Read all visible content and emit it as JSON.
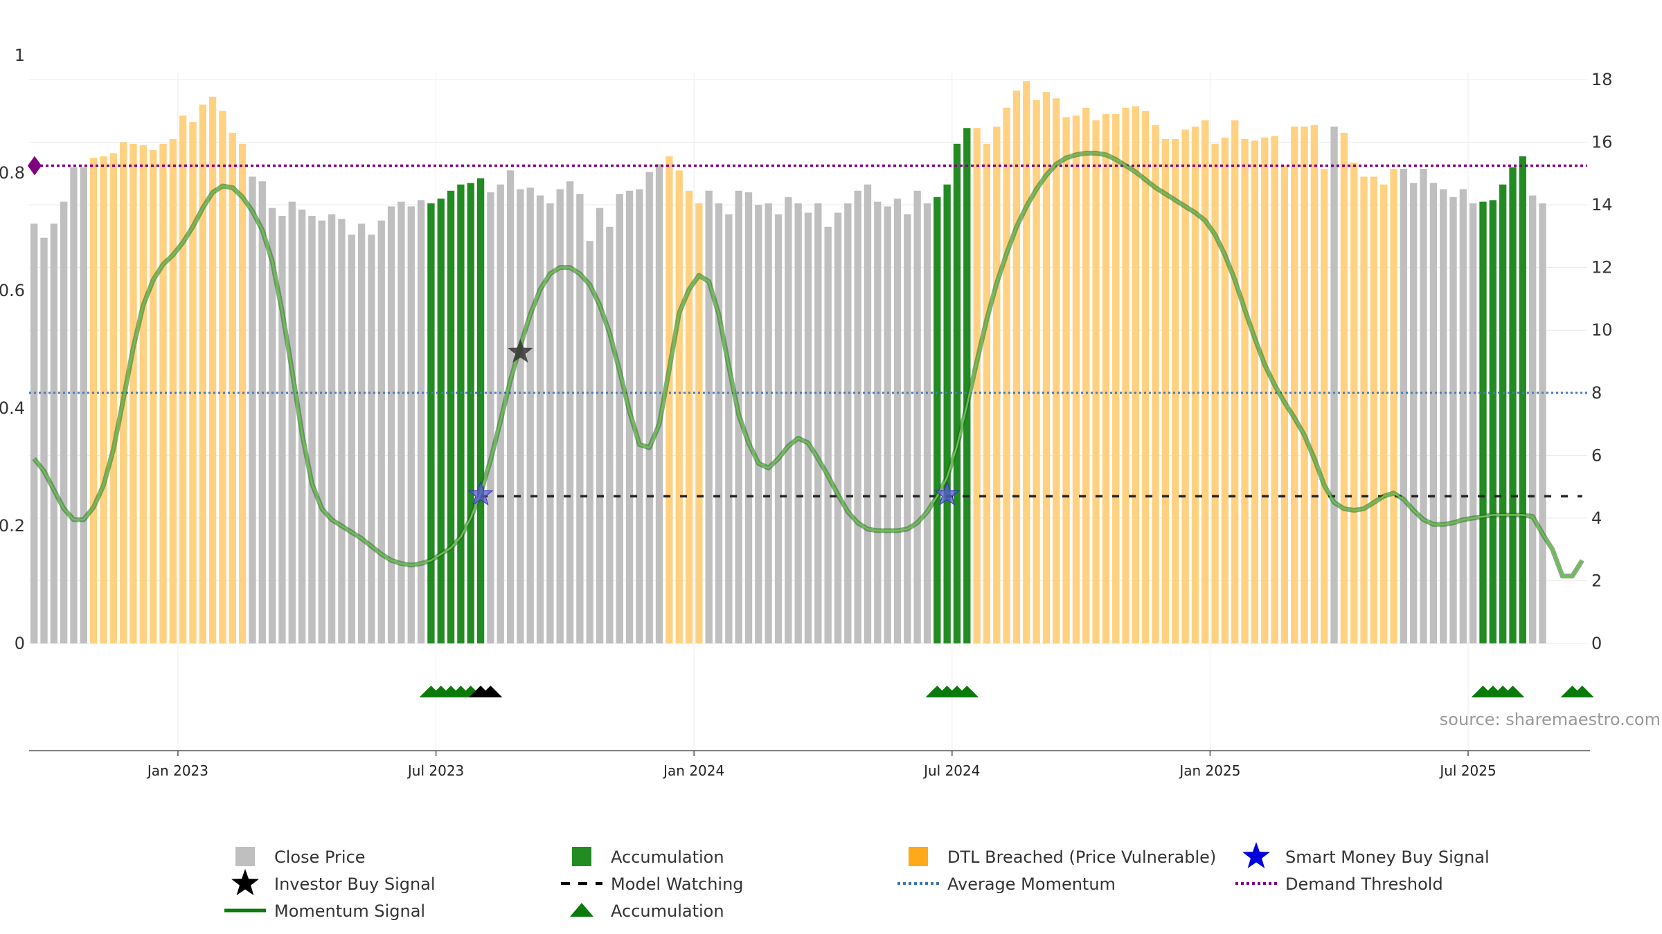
{
  "chart_data": {
    "type": "bar",
    "title": "",
    "xlabel": "",
    "ylabel": "",
    "source": "source: sharemaestro.com",
    "colors": {
      "close": "#bfbfbf",
      "accumulation": "#228b22",
      "dtl": "#ffd180",
      "momentum": "#2e8b2e",
      "average": "#4a7bb7",
      "demand": "#800080",
      "watching": "#222222",
      "smart_money": "#3333cc",
      "investor": "#333333",
      "triangle": "#0a7a0a"
    },
    "y_left": {
      "range": [
        0,
        1
      ],
      "ticks": [
        "0",
        "0.2",
        "0.4",
        "0.6",
        "0.8",
        "1"
      ]
    },
    "y_right": {
      "range": [
        0,
        18
      ],
      "ticks": [
        "0",
        "2",
        "4",
        "6",
        "8",
        "10",
        "12",
        "14",
        "16",
        "18"
      ]
    },
    "x_ticks": [
      "Jan 2023",
      "Jul 2023",
      "Jan 2024",
      "Jul 2024",
      "Jan 2025",
      "Jul 2025"
    ],
    "x_tick_index": [
      14.5,
      40.5,
      66.5,
      92.5,
      118.5,
      144.5
    ],
    "n_bars": 157,
    "bars_close": [
      13.4,
      12.95,
      13.4,
      14.1,
      15.2,
      15.2,
      15.5,
      15.55,
      15.65,
      16,
      15.95,
      15.9,
      15.75,
      15.95,
      16.1,
      16.85,
      16.65,
      17.2,
      17.45,
      17,
      16.3,
      15.95,
      14.9,
      14.75,
      13.9,
      13.65,
      14.1,
      13.85,
      13.65,
      13.5,
      13.7,
      13.55,
      13.05,
      13.4,
      13.05,
      13.5,
      13.95,
      14.1,
      13.95,
      14.15,
      14.05,
      14.2,
      14.45,
      14.65,
      14.7,
      14.85,
      14.4,
      14.65,
      15.1,
      14.5,
      14.55,
      14.3,
      14.05,
      14.5,
      14.75,
      14.35,
      12.85,
      13.9,
      13.3,
      14.35,
      14.45,
      14.5,
      15.05,
      15.3,
      15.55,
      15.1,
      14.45,
      14.05,
      14.45,
      14.05,
      13.7,
      14.45,
      14.4,
      14,
      14.05,
      13.7,
      14.25,
      14.05,
      13.75,
      14.05,
      13.3,
      13.75,
      14.05,
      14.45,
      14.65,
      14.1,
      13.95,
      14.2,
      13.7,
      14.45,
      14.05,
      14.25,
      14.65,
      15.95,
      16.45,
      16.45,
      15.95,
      16.5,
      17.1,
      17.65,
      17.95,
      17.35,
      17.6,
      17.4,
      16.8,
      16.85,
      17.1,
      16.7,
      16.9,
      16.9,
      17.1,
      17.15,
      17,
      16.55,
      16.1,
      16.1,
      16.4,
      16.5,
      16.7,
      15.95,
      16.15,
      16.7,
      16.1,
      16.05,
      16.15,
      16.2,
      15.25,
      16.5,
      16.5,
      16.55,
      15.15,
      16.5,
      16.3,
      15.35,
      14.9,
      14.9,
      14.65,
      15.15,
      15.15,
      14.7,
      15.15,
      14.7,
      14.5,
      14.25,
      14.5,
      14.05,
      14.1,
      14.15,
      14.65,
      15.2,
      15.55,
      14.3,
      14.05
    ],
    "bars_accumulation": [
      40,
      41,
      42,
      43,
      44,
      45,
      91,
      92,
      93,
      94,
      146,
      147,
      148,
      149,
      150,
      155,
      156
    ],
    "bars_dtl": [
      6,
      7,
      8,
      9,
      10,
      11,
      12,
      13,
      14,
      15,
      16,
      17,
      18,
      19,
      20,
      21,
      64,
      65,
      66,
      67,
      94,
      95,
      96,
      97,
      98,
      99,
      100,
      101,
      102,
      103,
      104,
      105,
      106,
      107,
      108,
      109,
      110,
      111,
      112,
      113,
      114,
      115,
      116,
      117,
      118,
      119,
      120,
      121,
      122,
      123,
      124,
      125,
      126,
      127,
      128,
      129,
      130,
      132,
      133,
      134,
      135,
      136,
      137,
      154
    ],
    "momentum": [
      [
        0,
        5.9
      ],
      [
        1,
        5.5
      ],
      [
        2,
        4.9
      ],
      [
        3,
        4.3
      ],
      [
        4,
        3.95
      ],
      [
        5,
        3.95
      ],
      [
        6,
        4.35
      ],
      [
        7,
        5.05
      ],
      [
        8,
        6.2
      ],
      [
        9,
        7.8
      ],
      [
        10,
        9.45
      ],
      [
        11,
        10.8
      ],
      [
        12,
        11.6
      ],
      [
        13,
        12.1
      ],
      [
        14,
        12.4
      ],
      [
        15,
        12.8
      ],
      [
        16,
        13.3
      ],
      [
        17,
        13.9
      ],
      [
        18,
        14.4
      ],
      [
        19,
        14.6
      ],
      [
        20,
        14.55
      ],
      [
        21,
        14.25
      ],
      [
        22,
        13.8
      ],
      [
        23,
        13.2
      ],
      [
        24,
        12.2
      ],
      [
        25,
        10.6
      ],
      [
        26,
        8.7
      ],
      [
        27,
        6.7
      ],
      [
        28,
        5.1
      ],
      [
        29,
        4.3
      ],
      [
        30,
        3.95
      ],
      [
        31,
        3.75
      ],
      [
        32,
        3.55
      ],
      [
        33,
        3.35
      ],
      [
        34,
        3.1
      ],
      [
        35,
        2.85
      ],
      [
        36,
        2.65
      ],
      [
        37,
        2.55
      ],
      [
        38,
        2.5
      ],
      [
        39,
        2.55
      ],
      [
        40,
        2.65
      ],
      [
        41,
        2.85
      ],
      [
        42,
        3.05
      ],
      [
        43,
        3.4
      ],
      [
        44,
        4
      ],
      [
        45,
        4.8
      ],
      [
        46,
        5.85
      ],
      [
        47,
        7.1
      ],
      [
        48,
        8.4
      ],
      [
        49,
        9.5
      ],
      [
        50,
        10.5
      ],
      [
        51,
        11.3
      ],
      [
        52,
        11.8
      ],
      [
        53,
        12
      ],
      [
        54,
        12
      ],
      [
        55,
        11.8
      ],
      [
        56,
        11.45
      ],
      [
        57,
        10.8
      ],
      [
        58,
        9.9
      ],
      [
        59,
        8.7
      ],
      [
        60,
        7.4
      ],
      [
        61,
        6.35
      ],
      [
        62,
        6.25
      ],
      [
        63,
        7
      ],
      [
        64,
        8.75
      ],
      [
        65,
        10.55
      ],
      [
        66,
        11.3
      ],
      [
        67,
        11.75
      ],
      [
        68,
        11.55
      ],
      [
        69,
        10.5
      ],
      [
        70,
        8.85
      ],
      [
        71,
        7.3
      ],
      [
        72,
        6.4
      ],
      [
        73,
        5.75
      ],
      [
        74,
        5.6
      ],
      [
        75,
        5.9
      ],
      [
        76,
        6.3
      ],
      [
        77,
        6.55
      ],
      [
        78,
        6.4
      ],
      [
        79,
        5.9
      ],
      [
        80,
        5.35
      ],
      [
        81,
        4.75
      ],
      [
        82,
        4.2
      ],
      [
        83,
        3.85
      ],
      [
        84,
        3.65
      ],
      [
        85,
        3.6
      ],
      [
        86,
        3.6
      ],
      [
        87,
        3.6
      ],
      [
        88,
        3.65
      ],
      [
        89,
        3.85
      ],
      [
        90,
        4.2
      ],
      [
        91,
        4.7
      ],
      [
        92,
        5.3
      ],
      [
        93,
        6.3
      ],
      [
        94,
        7.6
      ],
      [
        95,
        9
      ],
      [
        96,
        10.35
      ],
      [
        97,
        11.5
      ],
      [
        98,
        12.45
      ],
      [
        99,
        13.3
      ],
      [
        100,
        13.95
      ],
      [
        101,
        14.5
      ],
      [
        102,
        14.95
      ],
      [
        103,
        15.3
      ],
      [
        104,
        15.5
      ],
      [
        105,
        15.6
      ],
      [
        106,
        15.65
      ],
      [
        107,
        15.65
      ],
      [
        108,
        15.6
      ],
      [
        109,
        15.45
      ],
      [
        110,
        15.25
      ],
      [
        111,
        15.05
      ],
      [
        112,
        14.8
      ],
      [
        113,
        14.55
      ],
      [
        114,
        14.35
      ],
      [
        115,
        14.15
      ],
      [
        116,
        13.95
      ],
      [
        117,
        13.75
      ],
      [
        118,
        13.5
      ],
      [
        119,
        13.05
      ],
      [
        120,
        12.4
      ],
      [
        121,
        11.6
      ],
      [
        122,
        10.65
      ],
      [
        123,
        9.75
      ],
      [
        124,
        8.9
      ],
      [
        125,
        8.25
      ],
      [
        126,
        7.7
      ],
      [
        127,
        7.2
      ],
      [
        128,
        6.65
      ],
      [
        129,
        5.9
      ],
      [
        130,
        5.05
      ],
      [
        131,
        4.5
      ],
      [
        132,
        4.3
      ],
      [
        133,
        4.25
      ],
      [
        134,
        4.3
      ],
      [
        135,
        4.5
      ],
      [
        136,
        4.7
      ],
      [
        137,
        4.8
      ],
      [
        138,
        4.6
      ],
      [
        139,
        4.25
      ],
      [
        140,
        3.95
      ],
      [
        141,
        3.8
      ],
      [
        142,
        3.8
      ],
      [
        143,
        3.85
      ],
      [
        144,
        3.95
      ],
      [
        145,
        4
      ],
      [
        146,
        4.05
      ],
      [
        147,
        4.1
      ],
      [
        148,
        4.1
      ],
      [
        149,
        4.1
      ],
      [
        150,
        4.1
      ],
      [
        151,
        4.05
      ],
      [
        152,
        3.5
      ],
      [
        153,
        3
      ],
      [
        154,
        2.15
      ],
      [
        155,
        2.15
      ],
      [
        156,
        2.65
      ]
    ],
    "average_momentum": 8,
    "demand_threshold": 15.25,
    "model_watching": {
      "from": 45,
      "to": 156,
      "value": 4.7
    },
    "smart_money_buy": [
      [
        45,
        4.75
      ],
      [
        92,
        4.75
      ]
    ],
    "investor_buy": [
      [
        49,
        9.3
      ]
    ],
    "accumulation_triangles": [
      40,
      41,
      42,
      43,
      44,
      91,
      92,
      93,
      94,
      146,
      147,
      148,
      149,
      155,
      156
    ],
    "investor_triangles": [
      45,
      46
    ],
    "demand_marker": [
      0,
      15.25
    ],
    "legend": [
      {
        "name": "Close Price",
        "kind": "square",
        "color": "#bfbfbf"
      },
      {
        "name": "Accumulation",
        "kind": "square",
        "color": "#228b22"
      },
      {
        "name": "DTL Breached (Price Vulnerable)",
        "kind": "square",
        "color": "#ffa81a"
      },
      {
        "name": "Smart Money Buy Signal",
        "kind": "star",
        "color": "#0000dd"
      },
      {
        "name": "Investor Buy Signal",
        "kind": "star",
        "color": "#000000"
      },
      {
        "name": "Model Watching",
        "kind": "dash",
        "color": "#000000"
      },
      {
        "name": "Average Momentum",
        "kind": "dot",
        "color": "#3a76b0"
      },
      {
        "name": "Demand Threshold",
        "kind": "dot",
        "color": "#800080"
      },
      {
        "name": "Momentum Signal",
        "kind": "line",
        "color": "#0a7a0a"
      },
      {
        "name": "Accumulation",
        "kind": "triangle",
        "color": "#0a7a0a"
      }
    ]
  }
}
